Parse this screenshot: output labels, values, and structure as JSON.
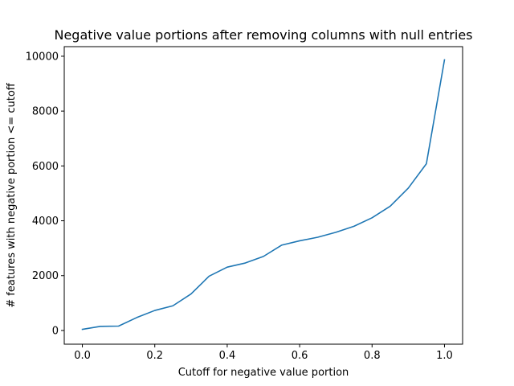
{
  "chart_data": {
    "type": "line",
    "title": "Negative value portions after removing columns with null entries",
    "xlabel": "Cutoff for negative value portion",
    "ylabel": "# features with negative portion <= cutoff",
    "xlim": [
      -0.05,
      1.05
    ],
    "ylim": [
      -500,
      10350
    ],
    "xticks": [
      0.0,
      0.2,
      0.4,
      0.6,
      0.8,
      1.0
    ],
    "xtick_labels": [
      "0.0",
      "0.2",
      "0.4",
      "0.6",
      "0.8",
      "1.0"
    ],
    "yticks": [
      0,
      2000,
      4000,
      6000,
      8000,
      10000
    ],
    "ytick_labels": [
      "0",
      "2000",
      "4000",
      "6000",
      "8000",
      "10000"
    ],
    "grid": false,
    "legend": "none",
    "series": [
      {
        "color": "#1f77b4",
        "x": [
          0.0,
          0.05,
          0.1,
          0.15,
          0.2,
          0.25,
          0.3,
          0.35,
          0.4,
          0.45,
          0.5,
          0.55,
          0.6,
          0.65,
          0.7,
          0.75,
          0.8,
          0.85,
          0.9,
          0.95,
          1.0
        ],
        "y": [
          40,
          150,
          160,
          470,
          730,
          900,
          1330,
          1980,
          2310,
          2460,
          2700,
          3110,
          3270,
          3400,
          3580,
          3800,
          4110,
          4530,
          5190,
          6080,
          9870
        ]
      }
    ]
  }
}
